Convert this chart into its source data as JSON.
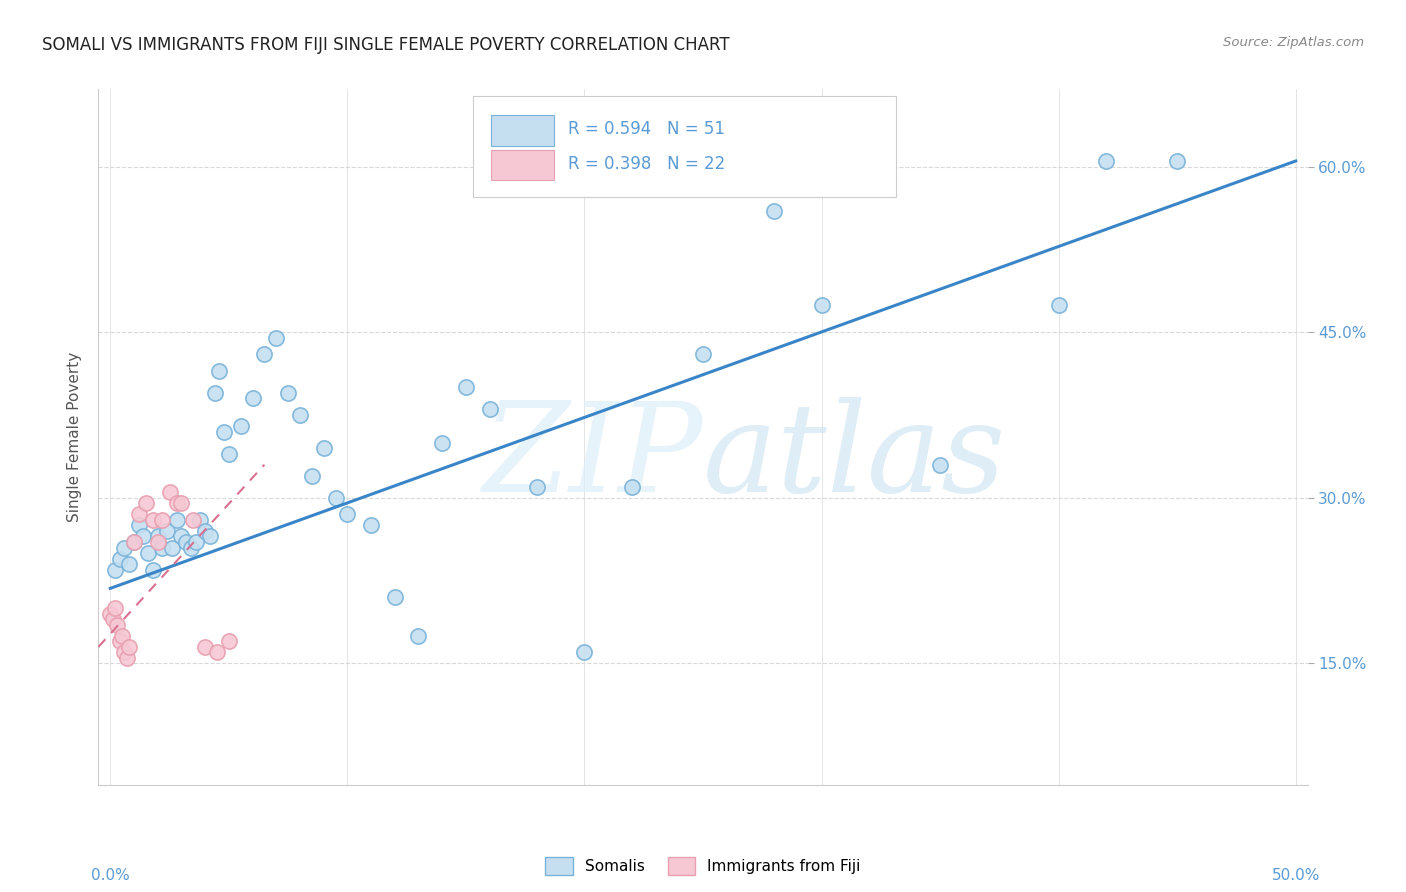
{
  "title": "SOMALI VS IMMIGRANTS FROM FIJI SINGLE FEMALE POVERTY CORRELATION CHART",
  "source": "Source: ZipAtlas.com",
  "ylabel_label": "Single Female Poverty",
  "legend_label1": "Somalis",
  "legend_label2": "Immigrants from Fiji",
  "R1": 0.594,
  "N1": 51,
  "R2": 0.398,
  "N2": 22,
  "xlim": [
    -0.005,
    0.505
  ],
  "ylim": [
    0.04,
    0.67
  ],
  "ytick_vals": [
    0.15,
    0.3,
    0.45,
    0.6
  ],
  "ytick_labels": [
    "15.0%",
    "30.0%",
    "45.0%",
    "60.0%"
  ],
  "xtick_vals": [
    0.0,
    0.1,
    0.2,
    0.3,
    0.4,
    0.5
  ],
  "xtick_labels": [
    "0.0%",
    "",
    "",
    "",
    "",
    "50.0%"
  ],
  "color_somali_edge": "#7ab3d9",
  "color_somali_fill": "#c5dff0",
  "color_fiji_edge": "#e8a0b0",
  "color_fiji_fill": "#f5c8d4",
  "somali_x": [
    0.002,
    0.004,
    0.006,
    0.008,
    0.01,
    0.012,
    0.014,
    0.016,
    0.018,
    0.02,
    0.022,
    0.024,
    0.026,
    0.028,
    0.03,
    0.032,
    0.034,
    0.036,
    0.038,
    0.04,
    0.042,
    0.044,
    0.046,
    0.048,
    0.05,
    0.055,
    0.06,
    0.065,
    0.07,
    0.075,
    0.08,
    0.085,
    0.09,
    0.095,
    0.1,
    0.11,
    0.12,
    0.13,
    0.14,
    0.15,
    0.16,
    0.18,
    0.2,
    0.22,
    0.25,
    0.28,
    0.3,
    0.35,
    0.4,
    0.42,
    0.45
  ],
  "somali_y": [
    0.235,
    0.245,
    0.255,
    0.24,
    0.26,
    0.275,
    0.265,
    0.25,
    0.235,
    0.265,
    0.255,
    0.27,
    0.255,
    0.28,
    0.265,
    0.26,
    0.255,
    0.26,
    0.28,
    0.27,
    0.265,
    0.395,
    0.415,
    0.36,
    0.34,
    0.365,
    0.39,
    0.43,
    0.445,
    0.395,
    0.375,
    0.32,
    0.345,
    0.3,
    0.285,
    0.275,
    0.21,
    0.175,
    0.35,
    0.4,
    0.38,
    0.31,
    0.16,
    0.31,
    0.43,
    0.56,
    0.475,
    0.33,
    0.475,
    0.605,
    0.605
  ],
  "fiji_x": [
    0.0,
    0.001,
    0.002,
    0.003,
    0.004,
    0.005,
    0.006,
    0.007,
    0.008,
    0.01,
    0.012,
    0.015,
    0.018,
    0.02,
    0.022,
    0.025,
    0.028,
    0.03,
    0.035,
    0.04,
    0.045,
    0.05
  ],
  "fiji_y": [
    0.195,
    0.19,
    0.2,
    0.185,
    0.17,
    0.175,
    0.16,
    0.155,
    0.165,
    0.26,
    0.285,
    0.295,
    0.28,
    0.26,
    0.28,
    0.305,
    0.295,
    0.295,
    0.28,
    0.165,
    0.16,
    0.17
  ],
  "trendline_somali": [
    0.0,
    0.5,
    0.218,
    0.605
  ],
  "trendline_fiji": [
    -0.005,
    0.065,
    0.165,
    0.33
  ],
  "watermark_zip": "ZIP",
  "watermark_atlas": "atlas",
  "bg_color": "#ffffff",
  "grid_color": "#d9d9d9",
  "title_fontsize": 12,
  "axis_label_color": "#555555",
  "right_tick_color": "#5b9bd5",
  "bottom_label_color": "#5b9bd5"
}
